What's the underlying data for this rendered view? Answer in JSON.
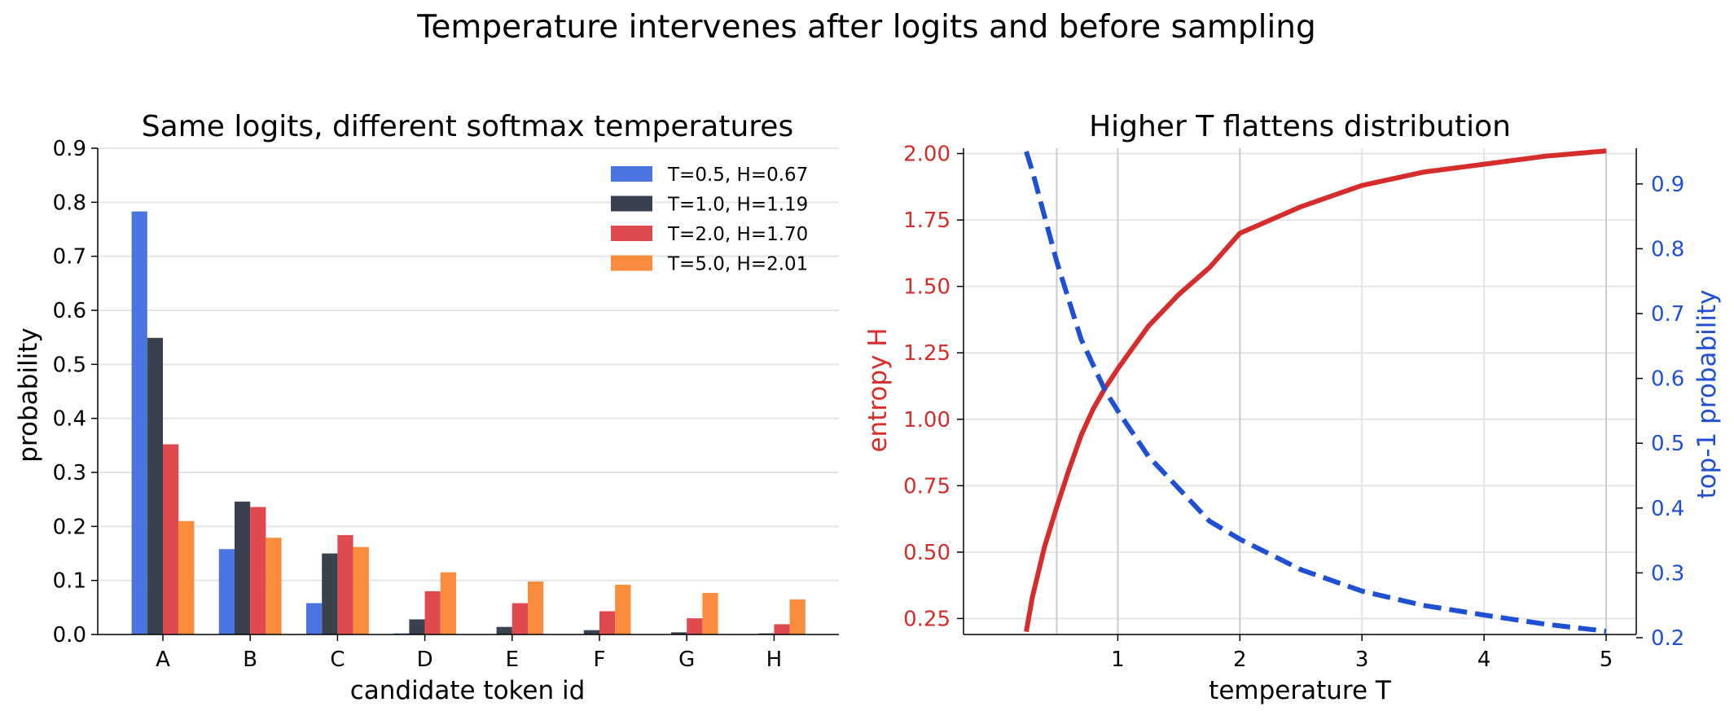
{
  "figure": {
    "suptitle": "Temperature intervenes after logits and before sampling"
  },
  "colors": {
    "t05": "#4a74e0",
    "t10": "#3a4250",
    "t20": "#e04a4e",
    "t50": "#f88c3c",
    "entropy": "#d62c2c",
    "top1": "#1f4fd3",
    "grid": "#e5e5e5",
    "vgrid": "#c9ccd3",
    "axis": "#000000"
  },
  "chart_data": [
    {
      "type": "bar",
      "title": "Same logits, different softmax temperatures",
      "xlabel": "candidate token id",
      "ylabel": "probability",
      "ylim": [
        0,
        0.9
      ],
      "yticks": [
        "0.0",
        "0.1",
        "0.2",
        "0.3",
        "0.4",
        "0.5",
        "0.6",
        "0.7",
        "0.8",
        "0.9"
      ],
      "categories": [
        "A",
        "B",
        "C",
        "D",
        "E",
        "F",
        "G",
        "H"
      ],
      "legend_position": "top-right",
      "series": [
        {
          "name": "T=0.5, H=0.67",
          "color_key": "t05",
          "values": [
            0.783,
            0.158,
            0.058,
            0.002,
            0.0,
            0.0,
            0.0,
            0.0
          ]
        },
        {
          "name": "T=1.0, H=1.19",
          "color_key": "t10",
          "values": [
            0.549,
            0.246,
            0.15,
            0.028,
            0.014,
            0.008,
            0.004,
            0.002
          ]
        },
        {
          "name": "T=2.0, H=1.70",
          "color_key": "t20",
          "values": [
            0.352,
            0.236,
            0.184,
            0.08,
            0.058,
            0.043,
            0.03,
            0.019
          ]
        },
        {
          "name": "T=5.0, H=2.01",
          "color_key": "t50",
          "values": [
            0.21,
            0.179,
            0.162,
            0.115,
            0.098,
            0.092,
            0.077,
            0.065
          ]
        }
      ]
    },
    {
      "type": "line",
      "title": "Higher T flattens distribution",
      "xlabel": "temperature T",
      "ylabel_left": "entropy H",
      "ylabel_right": "top-1 probability",
      "xlim": [
        0.25,
        5.0
      ],
      "xticks": [
        "1",
        "2",
        "3",
        "4",
        "5"
      ],
      "ylim_left": [
        0.19,
        2.02
      ],
      "yticks_left": [
        "0.25",
        "0.50",
        "0.75",
        "1.00",
        "1.25",
        "1.50",
        "1.75",
        "2.00"
      ],
      "ylim_right": [
        0.205,
        0.955
      ],
      "yticks_right": [
        "0.2",
        "0.3",
        "0.4",
        "0.5",
        "0.6",
        "0.7",
        "0.8",
        "0.9"
      ],
      "vlines_x": [
        0.5,
        1.0,
        2.0,
        5.0
      ],
      "series": [
        {
          "name": "entropy H",
          "axis": "left",
          "style": "solid",
          "color_key": "entropy",
          "x": [
            0.25,
            0.3,
            0.4,
            0.5,
            0.6,
            0.7,
            0.8,
            0.9,
            1.0,
            1.25,
            1.5,
            1.75,
            2.0,
            2.5,
            3.0,
            3.5,
            4.0,
            4.5,
            5.0
          ],
          "y": [
            0.2,
            0.33,
            0.52,
            0.67,
            0.81,
            0.94,
            1.04,
            1.12,
            1.19,
            1.35,
            1.47,
            1.57,
            1.7,
            1.8,
            1.88,
            1.93,
            1.96,
            1.99,
            2.01
          ]
        },
        {
          "name": "top-1 probability",
          "axis": "right",
          "style": "dashed",
          "color_key": "top1",
          "x": [
            0.25,
            0.3,
            0.4,
            0.5,
            0.6,
            0.7,
            0.8,
            0.9,
            1.0,
            1.25,
            1.5,
            1.75,
            2.0,
            2.5,
            3.0,
            3.5,
            4.0,
            4.5,
            5.0
          ],
          "y": [
            0.95,
            0.92,
            0.85,
            0.78,
            0.72,
            0.66,
            0.62,
            0.58,
            0.55,
            0.48,
            0.43,
            0.38,
            0.352,
            0.305,
            0.272,
            0.25,
            0.235,
            0.221,
            0.21
          ]
        }
      ]
    }
  ]
}
